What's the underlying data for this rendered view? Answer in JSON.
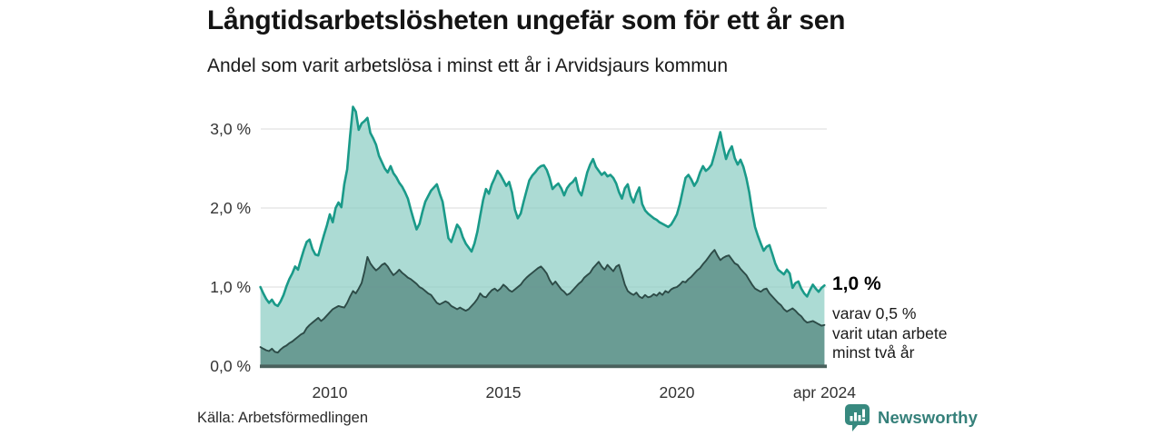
{
  "source": {
    "text": "Källa: Arbetsförmedlingen"
  },
  "branding": {
    "name": "Newsworthy",
    "icon": "bar-chart-speech-bubble-icon",
    "color": "#35807a"
  },
  "annotation": {
    "value": "1,0 %",
    "line1": "varav 0,5 %",
    "line2": "varit utan arbete",
    "line3": "minst två år"
  },
  "chart_data": {
    "type": "area",
    "title": "Långtidsarbetslösheten ungefär som för ett år sen",
    "subtitle": "Andel som varit arbetslösa i minst ett år i Arvidsjaurs kommun",
    "x_start": 2008,
    "points_per_year": 12,
    "x_end_label": "apr 2024",
    "ylim": [
      0,
      3.4
    ],
    "grid": "horizontal",
    "grid_color": "#e2e2e2",
    "baseline_color": "#4a615d",
    "tick_color": "#333333",
    "yticks": [
      {
        "value": 0,
        "label": "0,0 %"
      },
      {
        "value": 1,
        "label": "1,0 %"
      },
      {
        "value": 2,
        "label": "2,0 %"
      },
      {
        "value": 3,
        "label": "3,0 %"
      }
    ],
    "xticks": [
      {
        "year": 2010,
        "label": "2010"
      },
      {
        "year": 2015,
        "label": "2015"
      },
      {
        "year": 2020,
        "label": "2020"
      },
      {
        "year": 2024.25,
        "label": "apr 2024"
      }
    ],
    "series": [
      {
        "name": "Arbetslösa minst ett år",
        "end_label": "1,0 %",
        "line_color": "#1a9a89",
        "fill_color": "#8ccdc3",
        "fill_opacity": 0.72,
        "line_width": 2.6,
        "values": [
          1.0,
          0.92,
          0.85,
          0.8,
          0.84,
          0.78,
          0.76,
          0.82,
          0.9,
          1.01,
          1.1,
          1.17,
          1.26,
          1.22,
          1.35,
          1.47,
          1.57,
          1.6,
          1.48,
          1.41,
          1.4,
          1.53,
          1.66,
          1.78,
          1.92,
          1.82,
          2.0,
          2.07,
          2.01,
          2.3,
          2.49,
          2.91,
          3.28,
          3.22,
          2.99,
          3.07,
          3.1,
          3.14,
          2.95,
          2.88,
          2.8,
          2.66,
          2.58,
          2.5,
          2.45,
          2.53,
          2.44,
          2.39,
          2.32,
          2.27,
          2.2,
          2.12,
          1.98,
          1.85,
          1.73,
          1.8,
          1.95,
          2.08,
          2.15,
          2.22,
          2.26,
          2.3,
          2.18,
          2.08,
          1.85,
          1.62,
          1.57,
          1.68,
          1.79,
          1.74,
          1.63,
          1.55,
          1.5,
          1.45,
          1.55,
          1.7,
          1.9,
          2.1,
          2.24,
          2.18,
          2.3,
          2.38,
          2.47,
          2.42,
          2.35,
          2.28,
          2.33,
          2.2,
          1.98,
          1.87,
          1.93,
          2.08,
          2.22,
          2.35,
          2.41,
          2.45,
          2.5,
          2.53,
          2.54,
          2.48,
          2.38,
          2.24,
          2.28,
          2.31,
          2.25,
          2.16,
          2.25,
          2.3,
          2.33,
          2.38,
          2.22,
          2.16,
          2.3,
          2.45,
          2.55,
          2.62,
          2.52,
          2.47,
          2.42,
          2.45,
          2.4,
          2.42,
          2.38,
          2.31,
          2.2,
          2.12,
          2.25,
          2.3,
          2.15,
          2.07,
          2.18,
          2.26,
          2.05,
          1.97,
          1.93,
          1.9,
          1.87,
          1.85,
          1.82,
          1.8,
          1.78,
          1.76,
          1.79,
          1.85,
          1.92,
          2.05,
          2.22,
          2.38,
          2.42,
          2.36,
          2.28,
          2.34,
          2.45,
          2.53,
          2.47,
          2.5,
          2.55,
          2.68,
          2.82,
          2.96,
          2.78,
          2.62,
          2.72,
          2.78,
          2.63,
          2.55,
          2.61,
          2.52,
          2.38,
          2.2,
          1.96,
          1.76,
          1.65,
          1.55,
          1.46,
          1.51,
          1.53,
          1.42,
          1.3,
          1.22,
          1.19,
          1.16,
          1.22,
          1.17,
          0.99,
          1.05,
          1.07,
          0.98,
          0.92,
          0.88,
          0.96,
          1.03,
          0.98,
          0.94,
          0.99,
          1.02
        ]
      },
      {
        "name": "Utan arbete minst två år",
        "end_label": "0,5 %",
        "line_color": "#2d4b47",
        "fill_color": "#5c8d86",
        "fill_opacity": 0.82,
        "line_width": 1.9,
        "values": [
          0.24,
          0.22,
          0.2,
          0.19,
          0.22,
          0.18,
          0.17,
          0.21,
          0.24,
          0.26,
          0.29,
          0.31,
          0.34,
          0.37,
          0.4,
          0.42,
          0.48,
          0.52,
          0.55,
          0.58,
          0.61,
          0.57,
          0.6,
          0.64,
          0.68,
          0.72,
          0.74,
          0.76,
          0.75,
          0.74,
          0.8,
          0.88,
          0.95,
          0.92,
          0.98,
          1.05,
          1.2,
          1.38,
          1.3,
          1.25,
          1.21,
          1.24,
          1.28,
          1.3,
          1.26,
          1.2,
          1.15,
          1.18,
          1.22,
          1.18,
          1.15,
          1.12,
          1.1,
          1.07,
          1.04,
          1.0,
          0.98,
          0.95,
          0.92,
          0.9,
          0.85,
          0.8,
          0.78,
          0.8,
          0.82,
          0.8,
          0.76,
          0.74,
          0.72,
          0.74,
          0.72,
          0.7,
          0.72,
          0.76,
          0.8,
          0.85,
          0.92,
          0.88,
          0.87,
          0.92,
          0.96,
          0.98,
          0.95,
          0.98,
          1.03,
          1.0,
          0.96,
          0.94,
          0.97,
          1.0,
          1.03,
          1.08,
          1.12,
          1.15,
          1.18,
          1.21,
          1.24,
          1.26,
          1.22,
          1.17,
          1.09,
          1.03,
          1.07,
          1.02,
          0.97,
          0.94,
          0.9,
          0.92,
          0.96,
          1.0,
          1.04,
          1.07,
          1.12,
          1.15,
          1.18,
          1.24,
          1.28,
          1.32,
          1.26,
          1.22,
          1.28,
          1.24,
          1.2,
          1.26,
          1.28,
          1.16,
          1.03,
          0.95,
          0.92,
          0.9,
          0.93,
          0.88,
          0.86,
          0.9,
          0.87,
          0.88,
          0.91,
          0.89,
          0.93,
          0.9,
          0.95,
          0.93,
          0.97,
          0.99,
          1.0,
          1.03,
          1.07,
          1.06,
          1.1,
          1.13,
          1.17,
          1.21,
          1.24,
          1.29,
          1.33,
          1.38,
          1.43,
          1.47,
          1.4,
          1.34,
          1.37,
          1.39,
          1.4,
          1.35,
          1.3,
          1.28,
          1.23,
          1.19,
          1.15,
          1.09,
          1.03,
          0.98,
          0.96,
          0.94,
          0.97,
          0.98,
          0.92,
          0.88,
          0.84,
          0.8,
          0.77,
          0.72,
          0.69,
          0.71,
          0.73,
          0.7,
          0.66,
          0.63,
          0.58,
          0.55,
          0.56,
          0.57,
          0.55,
          0.53,
          0.51,
          0.52
        ]
      }
    ]
  }
}
